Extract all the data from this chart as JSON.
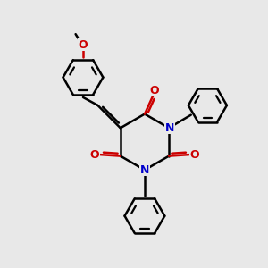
{
  "background_color": "#e8e8e8",
  "bond_color": "#000000",
  "N_color": "#0000cc",
  "O_color": "#cc0000",
  "bond_width": 1.8,
  "figsize": [
    3.0,
    3.0
  ],
  "dpi": 100,
  "xlim": [
    0,
    10
  ],
  "ylim": [
    0,
    10
  ]
}
